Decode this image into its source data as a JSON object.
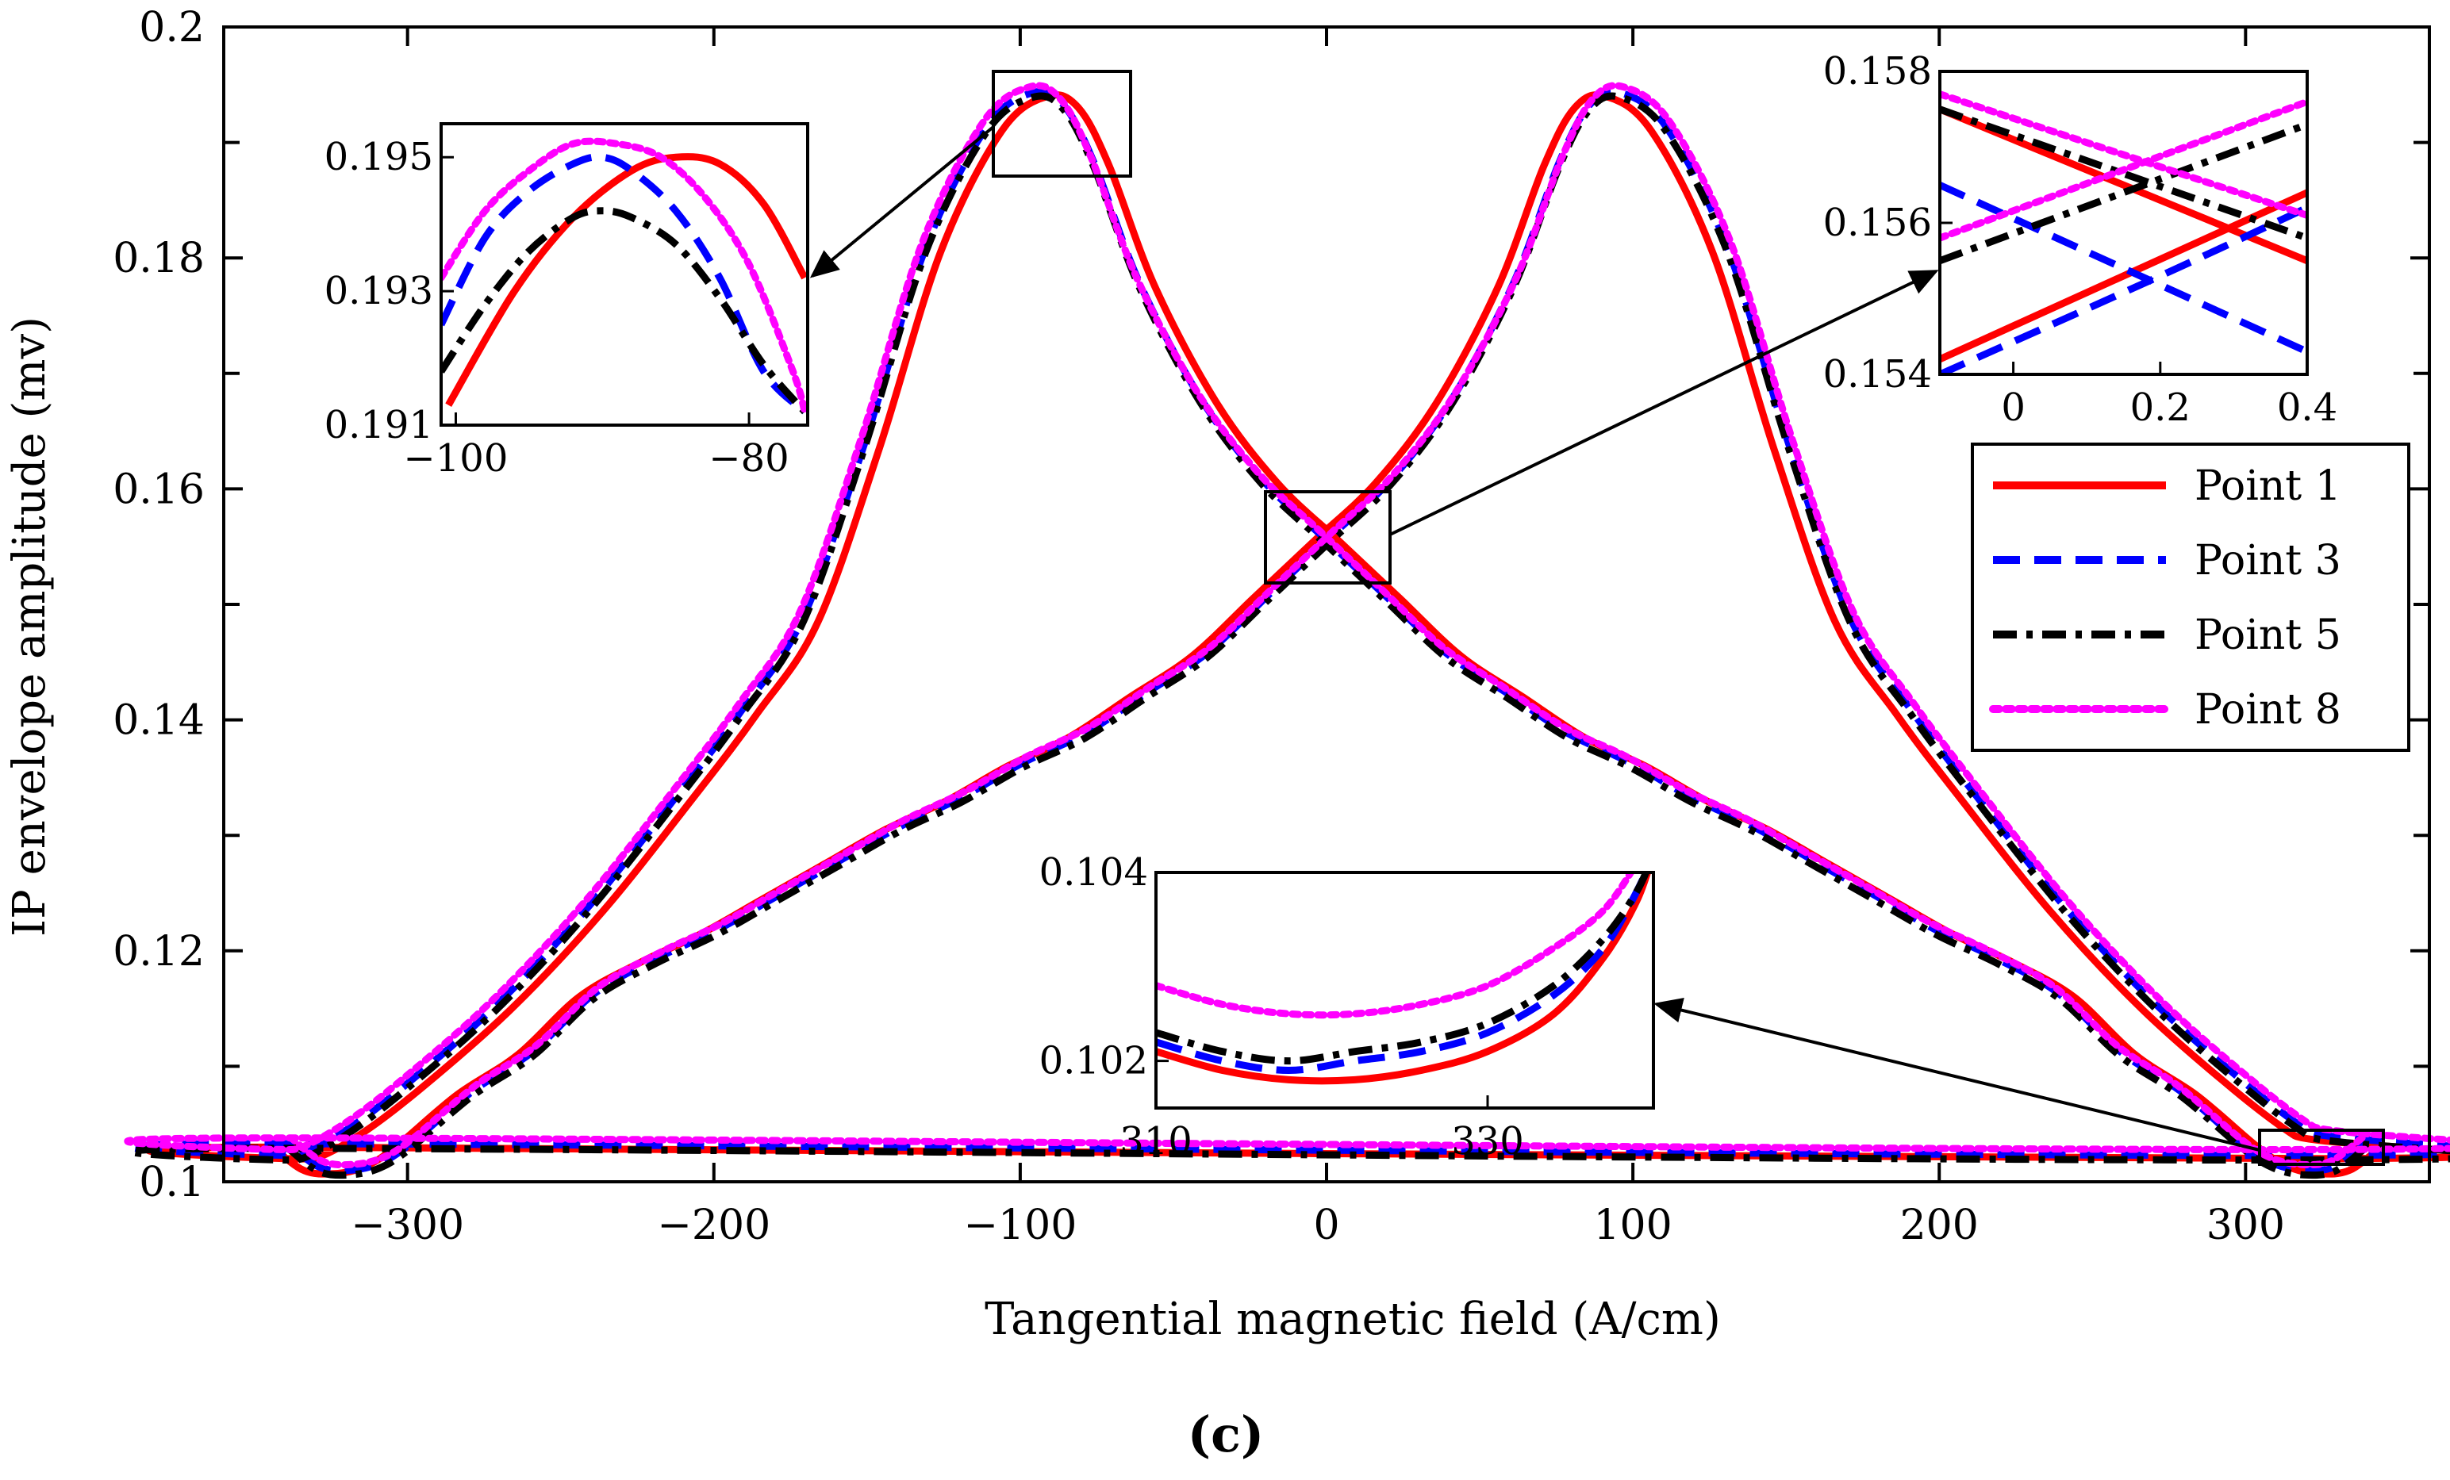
{
  "caption": "(c)",
  "colors": {
    "Point 1": "#ff0000",
    "Point 3": "#0000ff",
    "Point 5": "#000000",
    "Point 8": "#ff00ff"
  },
  "chart_data": {
    "type": "line",
    "title": "",
    "xlabel": "Tangential magnetic field (A/cm)",
    "ylabel": "IP envelope amplitude (mv)",
    "xlim": [
      -360,
      360
    ],
    "ylim": [
      0.1,
      0.2
    ],
    "xticks": [
      -300,
      -200,
      -100,
      0,
      100,
      200,
      300
    ],
    "xtick_labels": [
      "−300",
      "−200",
      "−100",
      "0",
      "100",
      "200",
      "300"
    ],
    "yticks": [
      0.1,
      0.12,
      0.14,
      0.16,
      0.18,
      0.2
    ],
    "ytick_labels": [
      "0.1",
      "0.12",
      "0.14",
      "0.16",
      "0.18",
      "0.2"
    ],
    "legend": {
      "position": "right",
      "entries": [
        {
          "name": "Point 1",
          "style": "solid"
        },
        {
          "name": "Point 3",
          "style": "dashed"
        },
        {
          "name": "Point 5",
          "style": "dashdot"
        },
        {
          "name": "Point 8",
          "style": "dotted"
        }
      ]
    },
    "base_branch_down": {
      "description": "field decreasing from +340 to -340",
      "x": [
        340,
        330,
        320,
        310,
        300,
        280,
        260,
        240,
        220,
        200,
        180,
        160,
        140,
        120,
        100,
        80,
        60,
        40,
        20,
        0,
        -20,
        -40,
        -60,
        -75,
        -85,
        -95,
        -110,
        -130,
        -150,
        -170,
        -190,
        -210,
        -240,
        -270,
        -300,
        -320,
        -335,
        -340
      ],
      "y": [
        0.1035,
        0.1015,
        0.1012,
        0.1018,
        0.1035,
        0.108,
        0.1115,
        0.1165,
        0.1195,
        0.122,
        0.125,
        0.128,
        0.131,
        0.1335,
        0.1365,
        0.139,
        0.1425,
        0.146,
        0.151,
        0.156,
        0.161,
        0.168,
        0.178,
        0.1885,
        0.1935,
        0.1945,
        0.1915,
        0.181,
        0.164,
        0.149,
        0.141,
        0.134,
        0.124,
        0.1155,
        0.1085,
        0.1045,
        0.1025,
        0.1035
      ]
    },
    "series": [
      {
        "name": "Point 1",
        "x_shift": 4.0,
        "y_shift": -0.0005
      },
      {
        "name": "Point 3",
        "x_shift": -1.0,
        "y_shift": -0.0002
      },
      {
        "name": "Point 5",
        "x_shift": -1.0,
        "y_shift": -0.0006
      },
      {
        "name": "Point 8",
        "x_shift": -2.0,
        "y_shift": 0.0003
      }
    ],
    "insets": [
      {
        "name": "inset-peak-left",
        "xlim": [
          -101,
          -76
        ],
        "ylim": [
          0.191,
          0.1955
        ],
        "xtick_labels": [
          "−100",
          "−80"
        ],
        "xticks": [
          -100,
          -80
        ],
        "ytick_labels": [
          "0.191",
          "0.193",
          "0.195"
        ],
        "yticks": [
          0.191,
          0.193,
          0.195
        ],
        "series": [
          {
            "name": "Point 1",
            "x": [
              -100.5,
              -96,
              -92,
              -88,
              -85,
              -82,
              -79,
              -76.2
            ],
            "y": [
              0.1913,
              0.193,
              0.1941,
              0.1948,
              0.195,
              0.1949,
              0.1943,
              0.1932
            ]
          },
          {
            "name": "Point 3",
            "x": [
              -101,
              -98,
              -95,
              -92,
              -90,
              -88,
              -85,
              -82,
              -79,
              -76.2
            ],
            "y": [
              0.1925,
              0.1938,
              0.1945,
              0.1949,
              0.195,
              0.1948,
              0.1942,
              0.1932,
              0.1918,
              0.1912
            ]
          },
          {
            "name": "Point 5",
            "x": [
              -101,
              -98,
              -95,
              -92,
              -90,
              -88,
              -85,
              -82,
              -79,
              -76.2
            ],
            "y": [
              0.1918,
              0.1928,
              0.1936,
              0.1941,
              0.1942,
              0.1941,
              0.1937,
              0.1929,
              0.1919,
              0.1912
            ]
          },
          {
            "name": "Point 8",
            "x": [
              -101,
              -98,
              -95,
              -92,
              -89,
              -86,
              -83,
              -80,
              -77,
              -76.2
            ],
            "y": [
              0.1932,
              0.1942,
              0.1948,
              0.1952,
              0.1952,
              0.195,
              0.1944,
              0.1934,
              0.1918,
              0.1912
            ]
          }
        ]
      },
      {
        "name": "inset-crossing",
        "xlim": [
          -0.1,
          0.4
        ],
        "ylim": [
          0.154,
          0.158
        ],
        "xtick_labels": [
          "0",
          "0.2",
          "0.4"
        ],
        "xticks": [
          0,
          0.2,
          0.4
        ],
        "ytick_labels": [
          "0.154",
          "0.156",
          "0.158"
        ],
        "yticks": [
          0.154,
          0.156,
          0.158
        ],
        "series": [
          {
            "name": "Point 1",
            "x": [
              -0.1,
              0.4
            ],
            "y": [
              0.1542,
              0.1564
            ]
          },
          {
            "name": "Point 1",
            "x": [
              -0.1,
              0.4
            ],
            "y": [
              0.1575,
              0.1555
            ]
          },
          {
            "name": "Point 3",
            "x": [
              -0.1,
              0.4
            ],
            "y": [
              0.1565,
              0.1543
            ]
          },
          {
            "name": "Point 3",
            "x": [
              -0.1,
              0.2,
              0.4
            ],
            "y": [
              0.154,
              0.1553,
              0.1562
            ]
          },
          {
            "name": "Point 5",
            "x": [
              -0.1,
              0.4
            ],
            "y": [
              0.1575,
              0.1558
            ]
          },
          {
            "name": "Point 5",
            "x": [
              -0.1,
              0.4
            ],
            "y": [
              0.1555,
              0.1573
            ]
          },
          {
            "name": "Point 8",
            "x": [
              -0.1,
              0.4
            ],
            "y": [
              0.1577,
              0.1561
            ]
          },
          {
            "name": "Point 8",
            "x": [
              -0.1,
              0.4
            ],
            "y": [
              0.1558,
              0.1576
            ]
          }
        ]
      },
      {
        "name": "inset-valley-right",
        "xlim": [
          310,
          340
        ],
        "ylim": [
          0.1015,
          0.104
        ],
        "xtick_labels": [
          "310",
          "330"
        ],
        "xticks": [
          310,
          330
        ],
        "ytick_labels": [
          "0.102",
          "0.104"
        ],
        "yticks": [
          0.102,
          0.104
        ],
        "series": [
          {
            "name": "Point 1",
            "x": [
              310,
              314,
              318,
              322,
              326,
              330,
              334,
              337,
              339,
              340
            ],
            "y": [
              0.1021,
              0.1019,
              0.1018,
              0.1018,
              0.1019,
              0.1021,
              0.1025,
              0.1031,
              0.1037,
              0.1042
            ]
          },
          {
            "name": "Point 3",
            "x": [
              310,
              314,
              318,
              322,
              326,
              330,
              334,
              337,
              339,
              340
            ],
            "y": [
              0.1022,
              0.102,
              0.1019,
              0.102,
              0.1021,
              0.1023,
              0.1027,
              0.1032,
              0.1038,
              0.1042
            ]
          },
          {
            "name": "Point 5",
            "x": [
              310,
              314,
              318,
              322,
              326,
              330,
              334,
              337,
              339,
              340
            ],
            "y": [
              0.1023,
              0.1021,
              0.102,
              0.1021,
              0.1022,
              0.1024,
              0.1028,
              0.1033,
              0.1038,
              0.1042
            ]
          },
          {
            "name": "Point 8",
            "x": [
              310,
              314,
              318,
              322,
              326,
              330,
              334,
              337,
              339
            ],
            "y": [
              0.1028,
              0.1026,
              0.1025,
              0.1025,
              0.1026,
              0.1028,
              0.1032,
              0.1036,
              0.1041
            ]
          }
        ]
      }
    ]
  }
}
